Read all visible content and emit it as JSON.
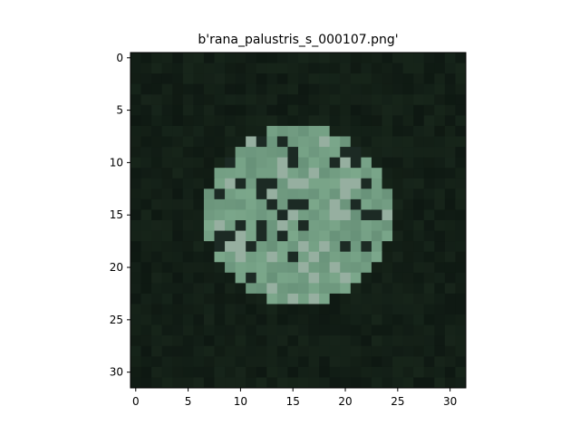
{
  "figure": {
    "title": "b'rana_palustris_s_000107.png'",
    "image_description": "32x32 pixel thumbnail of a frog, dark green background",
    "x_ticks": [
      "0",
      "5",
      "10",
      "15",
      "20",
      "25",
      "30"
    ],
    "y_ticks": [
      "0",
      "5",
      "10",
      "15",
      "20",
      "25",
      "30"
    ],
    "x_range": [
      -0.5,
      31.5
    ],
    "y_range": [
      -0.5,
      31.5
    ],
    "background_color": "#ffffff",
    "axes_color": "#000000"
  }
}
